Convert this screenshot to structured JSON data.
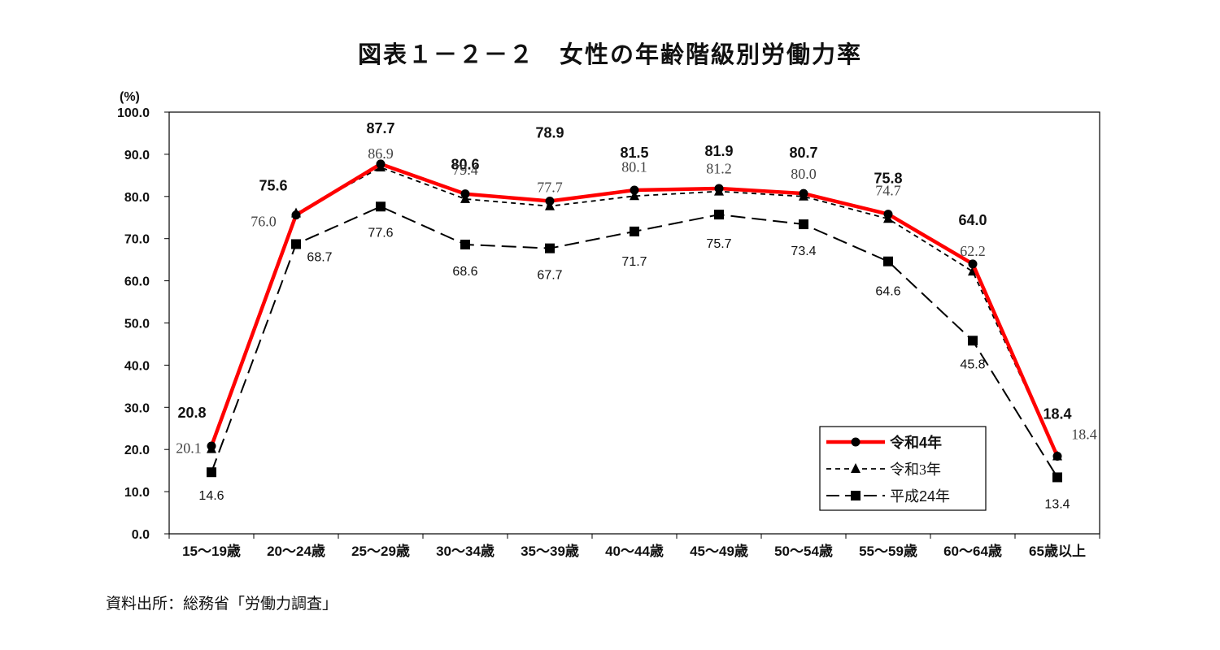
{
  "title": "図表１－２－２　女性の年齢階級別労働力率",
  "source": "資料出所：総務省「労働力調査」",
  "chart_data": {
    "type": "line",
    "title": "図表１－２－２　女性の年齢階級別労働力率",
    "ylabel": "(%)",
    "xlabel": "",
    "ylim": [
      0,
      100
    ],
    "yticks": [
      "0.0",
      "10.0",
      "20.0",
      "30.0",
      "40.0",
      "50.0",
      "60.0",
      "70.0",
      "80.0",
      "90.0",
      "100.0"
    ],
    "categories": [
      "15～19歳",
      "20～24歳",
      "25～29歳",
      "30～34歳",
      "35～39歳",
      "40～44歳",
      "45～49歳",
      "50～54歳",
      "55～59歳",
      "60～64歳",
      "65歳以上"
    ],
    "grid": false,
    "legend_position": "bottom-right",
    "series": [
      {
        "name": "令和4年",
        "values": [
          20.8,
          75.6,
          87.7,
          80.6,
          78.9,
          81.5,
          81.9,
          80.7,
          75.8,
          64.0,
          18.4
        ],
        "labels": [
          "20.8",
          "75.6",
          "87.7",
          "80.6",
          "78.9",
          "81.5",
          "81.9",
          "80.7",
          "75.8",
          "64.0",
          "18.4"
        ],
        "color": "#ff0000",
        "marker": "circle",
        "style": "solid"
      },
      {
        "name": "令和3年",
        "values": [
          20.1,
          76.0,
          86.9,
          79.4,
          77.7,
          80.1,
          81.2,
          80.0,
          74.7,
          62.2,
          18.4
        ],
        "labels": [
          "20.1",
          "76.0",
          "86.9",
          "79.4",
          "77.7",
          "80.1",
          "81.2",
          "80.0",
          "74.7",
          "62.2",
          "18.4"
        ],
        "color": "#000000",
        "marker": "triangle",
        "style": "dotted"
      },
      {
        "name": "平成24年",
        "values": [
          14.6,
          68.7,
          77.6,
          68.6,
          67.7,
          71.7,
          75.7,
          73.4,
          64.6,
          45.8,
          13.4
        ],
        "labels": [
          "14.6",
          "68.7",
          "77.6",
          "68.6",
          "67.7",
          "71.7",
          "75.7",
          "73.4",
          "64.6",
          "45.8",
          "13.4"
        ],
        "color": "#000000",
        "marker": "square",
        "style": "dashed"
      }
    ]
  }
}
